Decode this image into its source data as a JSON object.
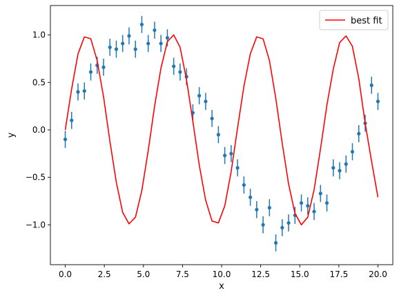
{
  "chart_data": {
    "type": "scatter",
    "xlabel": "x",
    "ylabel": "y",
    "xlim": [
      -0.95,
      20.95
    ],
    "ylim": [
      -1.42,
      1.31
    ],
    "grid": false,
    "legend_position": "top-right",
    "xticks": [
      {
        "value": 0.0,
        "label": "0.0"
      },
      {
        "value": 2.5,
        "label": "2.5"
      },
      {
        "value": 5.0,
        "label": "5.0"
      },
      {
        "value": 7.5,
        "label": "7.5"
      },
      {
        "value": 10.0,
        "label": "10.0"
      },
      {
        "value": 12.5,
        "label": "12.5"
      },
      {
        "value": 15.0,
        "label": "15.0"
      },
      {
        "value": 17.5,
        "label": "17.5"
      },
      {
        "value": 20.0,
        "label": "20.0"
      }
    ],
    "yticks": [
      {
        "value": -1.0,
        "label": "−1.0"
      },
      {
        "value": -0.5,
        "label": "−0.5"
      },
      {
        "value": 0.0,
        "label": "0.0"
      },
      {
        "value": 0.5,
        "label": "0.5"
      },
      {
        "value": 1.0,
        "label": "1.0"
      }
    ],
    "colors": {
      "data": "#1f77b4",
      "fit": "#ff0000"
    },
    "data_series": {
      "error": 0.09,
      "x": [
        0.0,
        0.408,
        0.816,
        1.224,
        1.633,
        2.041,
        2.449,
        2.857,
        3.265,
        3.673,
        4.082,
        4.49,
        4.898,
        5.306,
        5.714,
        6.122,
        6.531,
        6.939,
        7.347,
        7.755,
        8.163,
        8.571,
        8.98,
        9.388,
        9.796,
        10.204,
        10.612,
        11.02,
        11.429,
        11.837,
        12.245,
        12.653,
        13.061,
        13.469,
        13.878,
        14.286,
        14.694,
        15.102,
        15.51,
        15.918,
        16.327,
        16.735,
        17.143,
        17.551,
        17.959,
        18.367,
        18.776,
        19.184,
        19.592,
        20.0
      ],
      "y": [
        -0.1,
        0.1,
        0.4,
        0.41,
        0.61,
        0.68,
        0.66,
        0.87,
        0.85,
        0.91,
        0.99,
        0.85,
        1.11,
        0.91,
        1.05,
        0.91,
        0.97,
        0.67,
        0.61,
        0.56,
        0.18,
        0.36,
        0.3,
        0.12,
        -0.05,
        -0.27,
        -0.25,
        -0.4,
        -0.58,
        -0.71,
        -0.84,
        -1.0,
        -0.82,
        -1.19,
        -1.03,
        -0.98,
        -0.9,
        -0.77,
        -0.8,
        -0.86,
        -0.67,
        -0.77,
        -0.4,
        -0.43,
        -0.36,
        -0.23,
        -0.04,
        0.07,
        0.47,
        0.3
      ]
    },
    "fit_series": {
      "name": "best fit",
      "x": [
        0.0,
        0.408,
        0.816,
        1.224,
        1.633,
        2.041,
        2.449,
        2.857,
        3.265,
        3.673,
        4.082,
        4.49,
        4.898,
        5.306,
        5.714,
        6.122,
        6.531,
        6.939,
        7.347,
        7.755,
        8.163,
        8.571,
        8.98,
        9.388,
        9.796,
        10.204,
        10.612,
        11.02,
        11.429,
        11.837,
        12.245,
        12.653,
        13.061,
        13.469,
        13.878,
        14.286,
        14.694,
        15.102,
        15.51,
        15.918,
        16.327,
        16.735,
        17.143,
        17.551,
        17.959,
        18.367,
        18.776,
        19.184,
        19.592,
        20.0
      ],
      "y": [
        0.0,
        0.43,
        0.8,
        0.98,
        0.96,
        0.73,
        0.35,
        -0.12,
        -0.55,
        -0.87,
        -0.99,
        -0.92,
        -0.64,
        -0.22,
        0.25,
        0.65,
        0.93,
        1.0,
        0.87,
        0.53,
        0.09,
        -0.37,
        -0.74,
        -0.96,
        -0.98,
        -0.8,
        -0.44,
        0.02,
        0.46,
        0.8,
        0.98,
        0.96,
        0.73,
        0.33,
        -0.14,
        -0.57,
        -0.88,
        -1.0,
        -0.92,
        -0.63,
        -0.2,
        0.26,
        0.64,
        0.92,
        0.99,
        0.88,
        0.54,
        0.07,
        -0.33,
        -0.71
      ]
    }
  }
}
